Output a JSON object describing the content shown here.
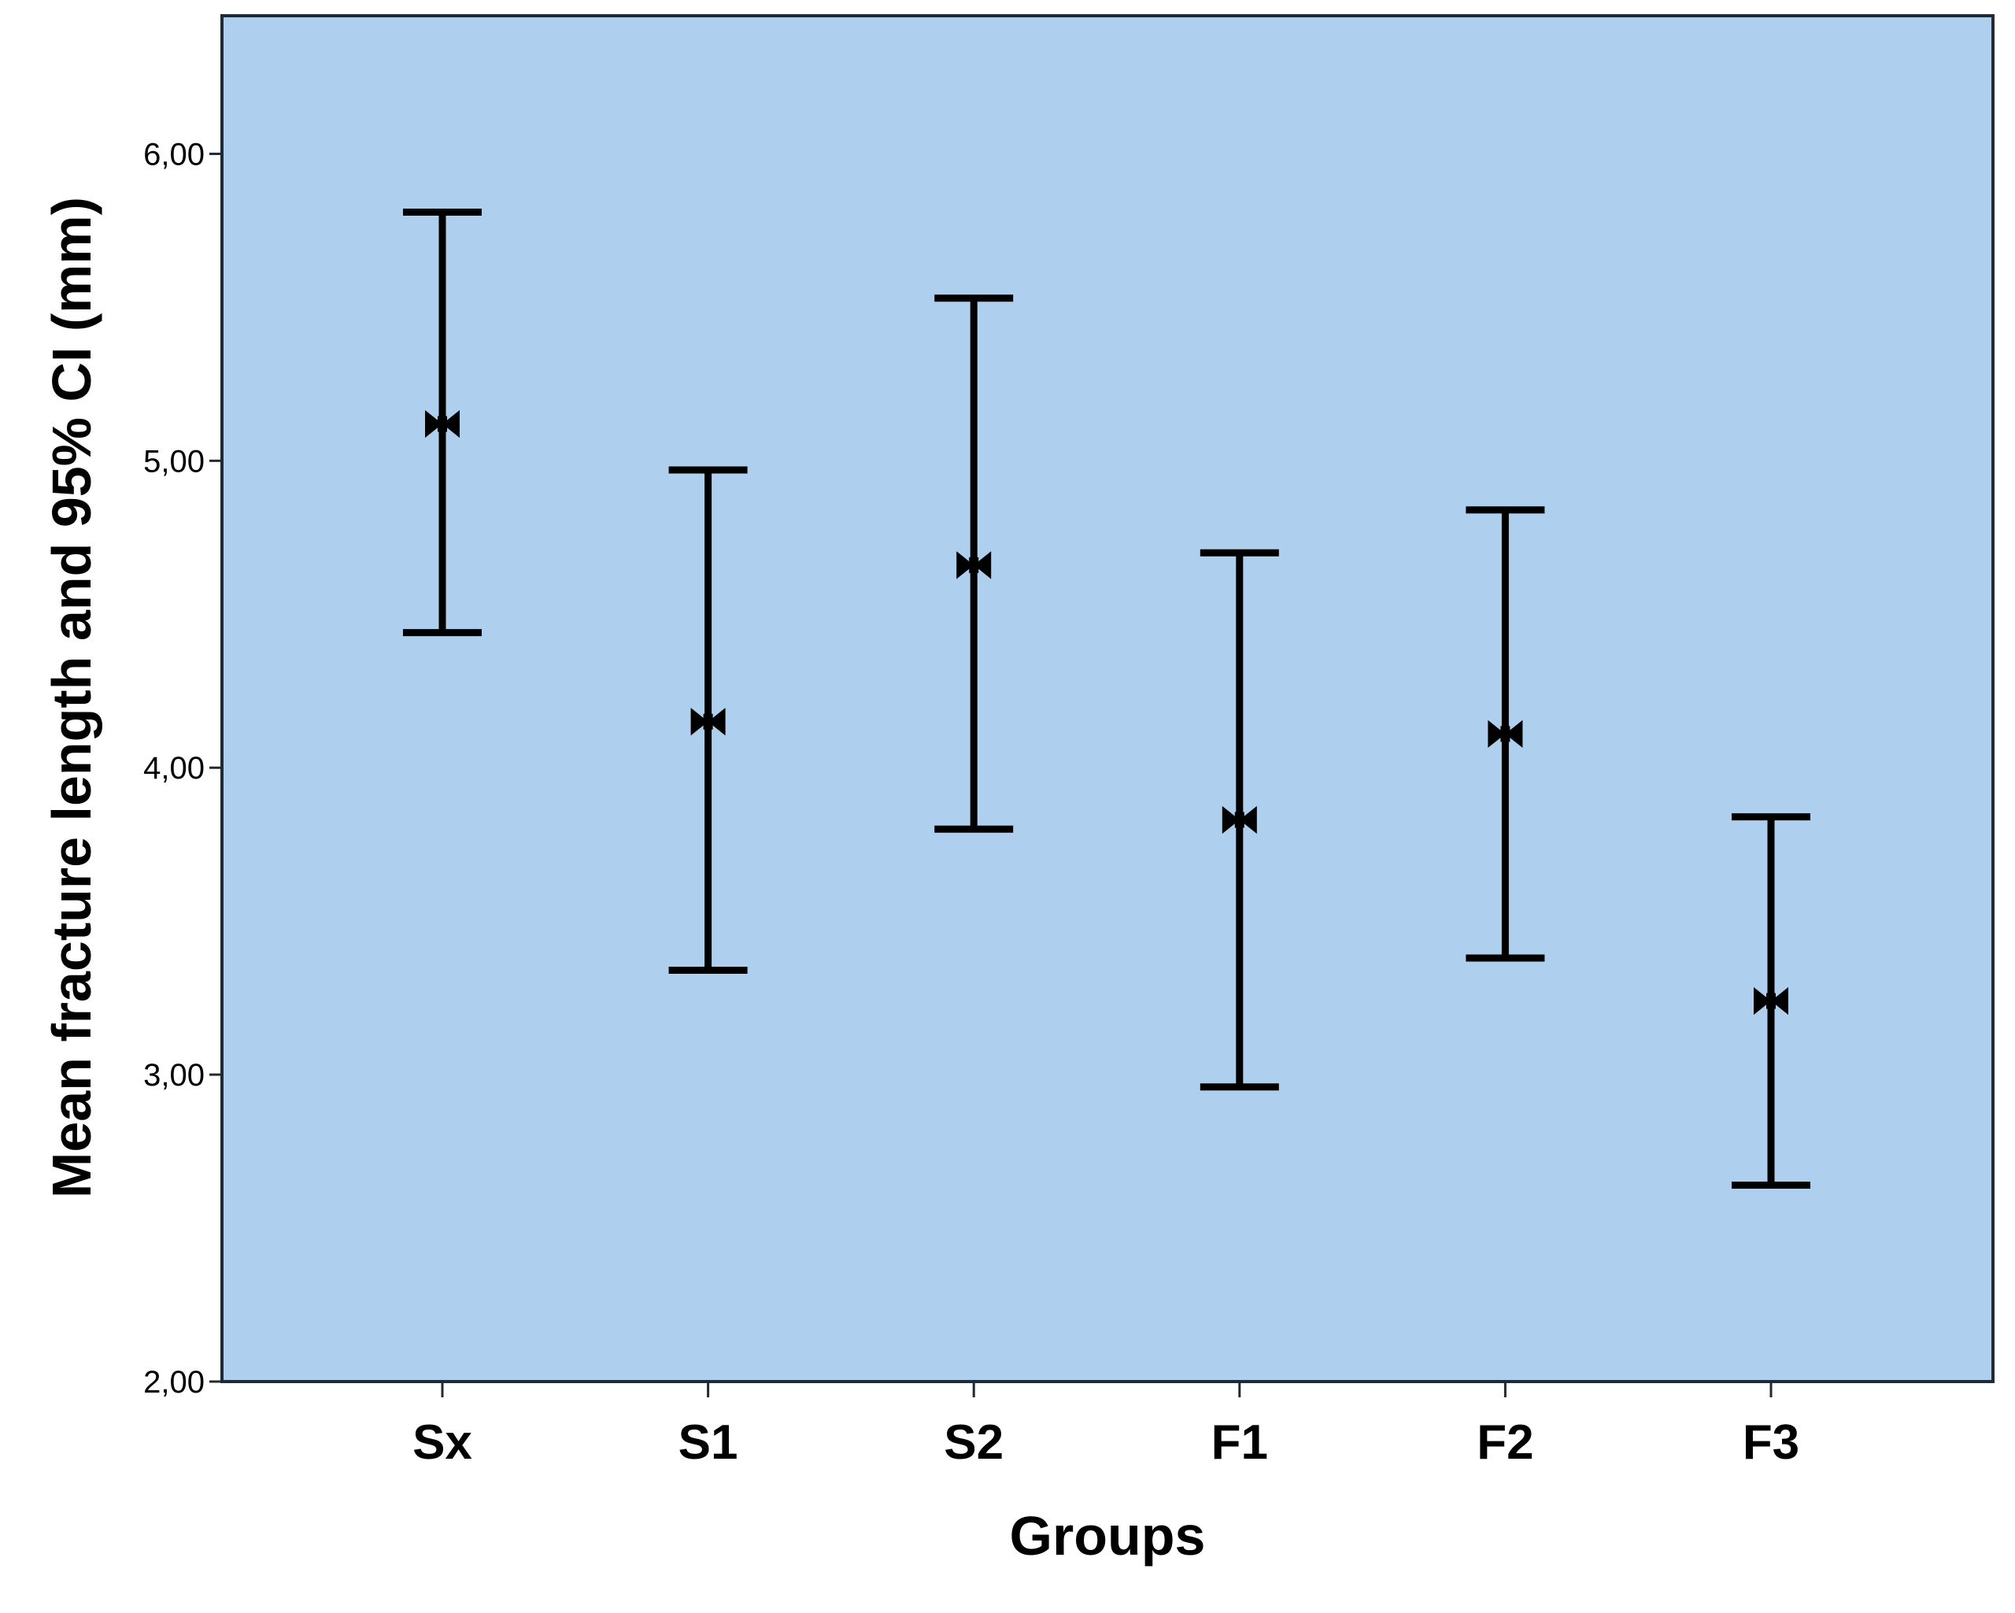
{
  "chart_data": {
    "type": "errorbar",
    "title": "",
    "xlabel": "Groups",
    "ylabel": "Mean fracture length and 95% CI (mm)",
    "ylim": [
      2.0,
      6.45
    ],
    "yticks": [
      2.0,
      3.0,
      4.0,
      5.0,
      6.0
    ],
    "ytick_labels": [
      "2,00",
      "3,00",
      "4,00",
      "5,00",
      "6,00"
    ],
    "categories": [
      "Sx",
      "S1",
      "S2",
      "F1",
      "F2",
      "F3"
    ],
    "mean": [
      5.12,
      4.15,
      4.66,
      3.83,
      4.11,
      3.24
    ],
    "ci_lower": [
      4.44,
      3.34,
      3.8,
      2.96,
      3.38,
      2.64
    ],
    "ci_upper": [
      5.81,
      4.97,
      5.53,
      4.7,
      4.84,
      3.84
    ],
    "grid": false,
    "legend": "none",
    "colors": {
      "plot_background": "#AECFEE",
      "frame": "#1F2A33",
      "marks": "#000000"
    }
  }
}
